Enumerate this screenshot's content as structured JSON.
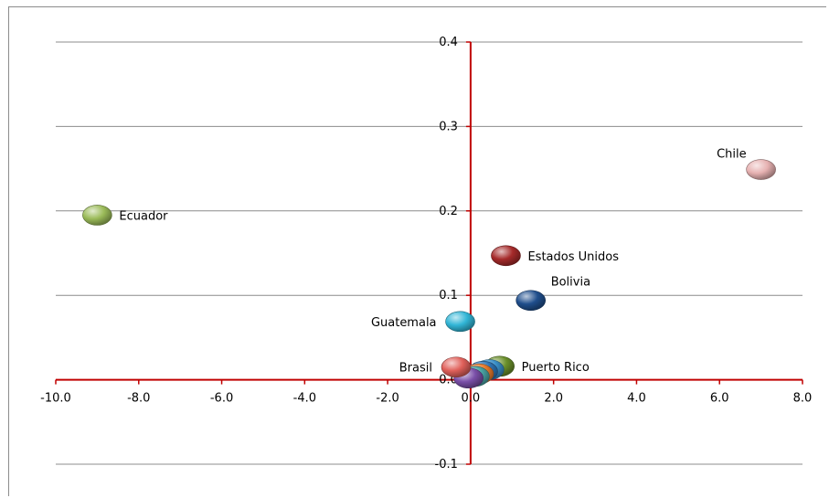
{
  "chart_data": {
    "type": "scatter",
    "title": "",
    "xlabel": "",
    "ylabel": "",
    "xlim": [
      -10,
      8
    ],
    "ylim": [
      -0.1,
      0.4
    ],
    "x_ticks": [
      -10,
      -8,
      -6,
      -4,
      -2,
      0,
      2,
      4,
      6,
      8
    ],
    "x_tick_labels": [
      "-10.0",
      "-8.0",
      "-6.0",
      "-4.0",
      "-2.0",
      "0.0",
      "2.0",
      "4.0",
      "6.0",
      "8.0"
    ],
    "y_ticks": [
      -0.1,
      0,
      0.1,
      0.2,
      0.3,
      0.4
    ],
    "y_tick_labels": [
      "-0.1",
      "0.0",
      "0.1",
      "0.2",
      "0.3",
      "0.4"
    ],
    "grid": "horizontal",
    "axis_color": "#c00000",
    "grid_color": "#8c8c8c",
    "points": [
      {
        "label": "Chile",
        "x": 7.0,
        "y": 0.249,
        "color": "#e6b1b1"
      },
      {
        "label": "Ecuador",
        "x": -9.0,
        "y": 0.195,
        "color": "#9bbb59"
      },
      {
        "label": "Estados Unidos",
        "x": 0.85,
        "y": 0.147,
        "color": "#a52a2a"
      },
      {
        "label": "Bolivia",
        "x": 1.45,
        "y": 0.094,
        "color": "#1f4e8c"
      },
      {
        "label": "Guatemala",
        "x": -0.25,
        "y": 0.069,
        "color": "#31b5d6"
      },
      {
        "label": "Puerto Rico",
        "x": 0.7,
        "y": 0.016,
        "color": "#6a8f2a"
      },
      {
        "label": "",
        "x": 0.45,
        "y": 0.012,
        "color": "#3a8fc8"
      },
      {
        "label": "",
        "x": 0.3,
        "y": 0.01,
        "color": "#2e75b6"
      },
      {
        "label": "",
        "x": 0.2,
        "y": 0.007,
        "color": "#e87b2c"
      },
      {
        "label": "",
        "x": 0.1,
        "y": 0.004,
        "color": "#4aa5a5"
      },
      {
        "label": "",
        "x": -0.05,
        "y": 0.002,
        "color": "#7a4fa8"
      },
      {
        "label": "Brasil",
        "x": -0.35,
        "y": 0.015,
        "color": "#e0605a"
      }
    ]
  }
}
